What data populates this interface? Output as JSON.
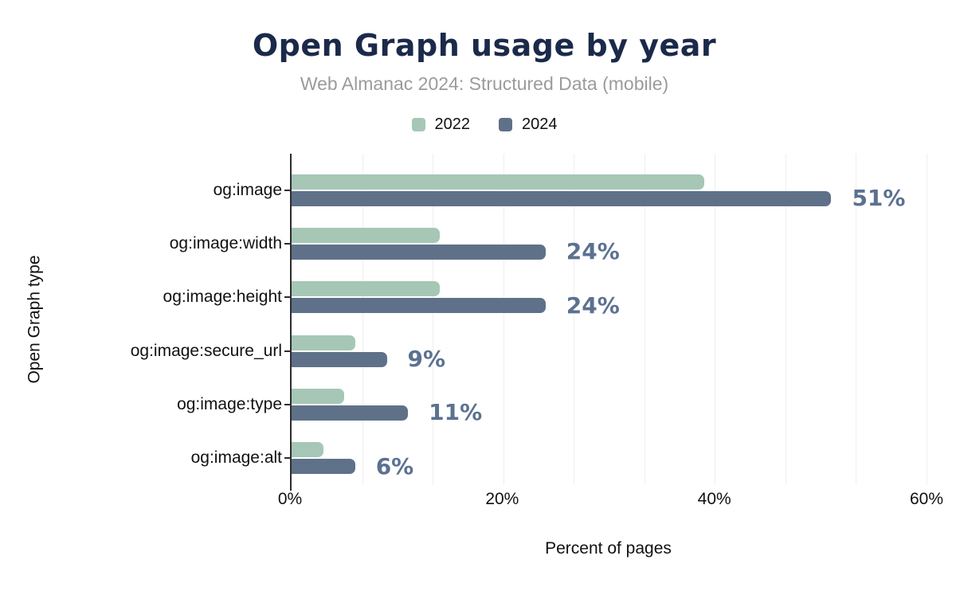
{
  "chart_data": {
    "type": "bar",
    "orientation": "horizontal",
    "title": "Open Graph usage by year",
    "subtitle": "Web Almanac 2024: Structured Data (mobile)",
    "xlabel": "Percent of pages",
    "ylabel": "Open Graph type",
    "xlim": [
      0,
      60
    ],
    "x_ticks": [
      "0%",
      "20%",
      "40%",
      "60%"
    ],
    "gridline_step_pct": 6.6667,
    "grid": true,
    "legend_position": "top-center",
    "categories": [
      "og:image",
      "og:image:width",
      "og:image:height",
      "og:image:secure_url",
      "og:image:type",
      "og:image:alt"
    ],
    "series": [
      {
        "name": "2022",
        "color": "#a6c7b6",
        "values": [
          39,
          14,
          14,
          6,
          5,
          3
        ]
      },
      {
        "name": "2024",
        "color": "#5f7189",
        "values": [
          51,
          24,
          24,
          9,
          11,
          6
        ],
        "data_labels": [
          "51%",
          "24%",
          "24%",
          "9%",
          "11%",
          "6%"
        ]
      }
    ],
    "colors": {
      "title": "#1b2a4a",
      "subtitle": "#9b9b9b",
      "data_label": "#5b7190",
      "axis_line": "#2d2d2d",
      "gridline": "#efefef",
      "text": "#111111"
    }
  }
}
